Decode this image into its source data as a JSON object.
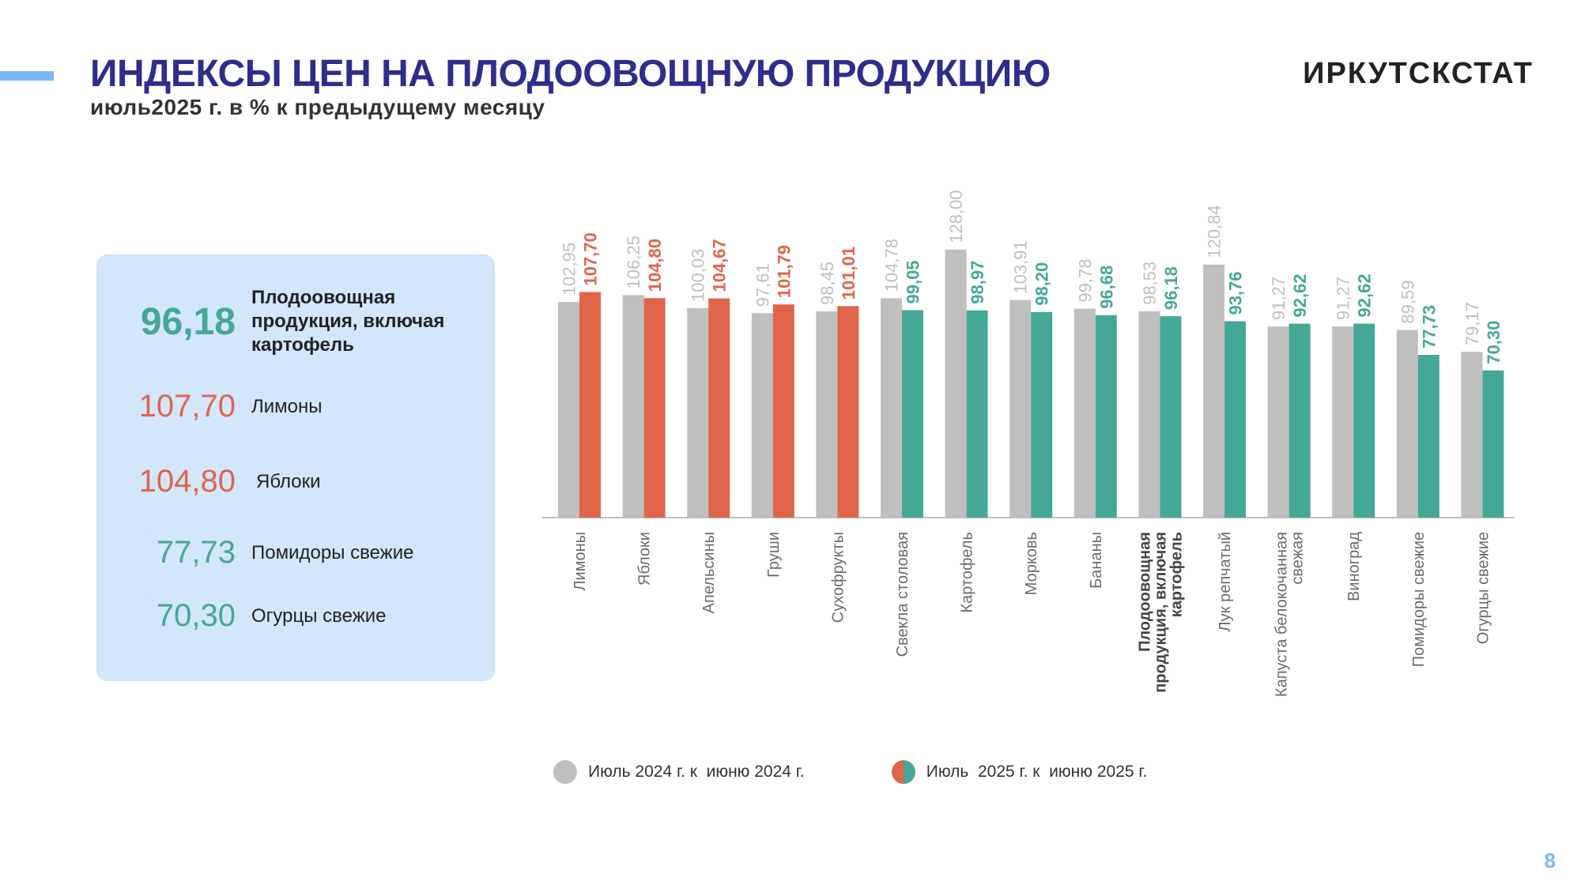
{
  "header": {
    "title": "ИНДЕКСЫ ЦЕН НА ПЛОДООВОЩНУЮ ПРОДУКЦИЮ",
    "subtitle": "июль2025 г. в % к предыдущему месяцу",
    "brand": "ИРКУТСКСТАТ"
  },
  "page_number": "8",
  "summary": [
    {
      "value": "96,18",
      "label": "Плодоовощная продукция, включая картофель",
      "tone": "main"
    },
    {
      "value": "107,70",
      "label": "Лимоны",
      "tone": "up"
    },
    {
      "value": "104,80",
      "label": "Яблоки",
      "tone": "up"
    },
    {
      "value": "77,73",
      "label": "Помидоры свежие",
      "tone": "down"
    },
    {
      "value": "70,30",
      "label": "Огурцы свежие",
      "tone": "down"
    }
  ],
  "legend": {
    "prev_label": "Июль 2024 г. к  июню 2024 г.",
    "curr_label": "Июль  2025 г. к  июню 2025 г."
  },
  "colors": {
    "prev": "#bfbfbf",
    "increase": "#e0654a",
    "decrease": "#45a896",
    "title": "#2e2e8a",
    "panel": "#d2e6fc"
  },
  "chart_data": {
    "type": "bar",
    "categories": [
      [
        "Лимоны"
      ],
      [
        "Яблоки"
      ],
      [
        "Апельсины"
      ],
      [
        "Груши"
      ],
      [
        "Сухофрукты"
      ],
      [
        "Свекла столовая"
      ],
      [
        "Картофель"
      ],
      [
        "Морковь"
      ],
      [
        "Бананы"
      ],
      [
        "Плодоовощная",
        "продукция, включая",
        "картофель"
      ],
      [
        "Лук репчатый"
      ],
      [
        "Капуста белокочанная",
        "свежая"
      ],
      [
        "Виноград"
      ],
      [
        "Помидоры свежие"
      ],
      [
        "Огурцы  свежие"
      ]
    ],
    "highlight_category_index": 9,
    "series": [
      {
        "name": "Июль 2024 г. к  июню 2024 г.",
        "values": [
          102.95,
          106.25,
          100.03,
          97.61,
          98.45,
          104.78,
          128.0,
          103.91,
          99.78,
          98.53,
          120.84,
          91.27,
          91.27,
          89.59,
          79.17
        ],
        "labels": [
          "102,95",
          "106,25",
          "100,03",
          "97,61",
          "98,45",
          "104,78",
          "128,00",
          "103,91",
          "99,78",
          "98,53",
          "120,84",
          "91,27",
          "91,27",
          "89,59",
          "79,17"
        ]
      },
      {
        "name": "Июль  2025 г. к  июню 2025 г.",
        "values": [
          107.7,
          104.8,
          104.67,
          101.79,
          101.01,
          99.05,
          98.97,
          98.2,
          96.68,
          96.18,
          93.76,
          92.62,
          92.62,
          77.73,
          70.3
        ],
        "labels": [
          "107,70",
          "104,80",
          "104,67",
          "101,79",
          "101,01",
          "99,05",
          "98,97",
          "98,20",
          "96,68",
          "96,18",
          "93,76",
          "92,62",
          "92,62",
          "77,73",
          "70,30"
        ]
      }
    ],
    "ylim": [
      0,
      128
    ],
    "grid": false,
    "legend_position": "bottom"
  }
}
